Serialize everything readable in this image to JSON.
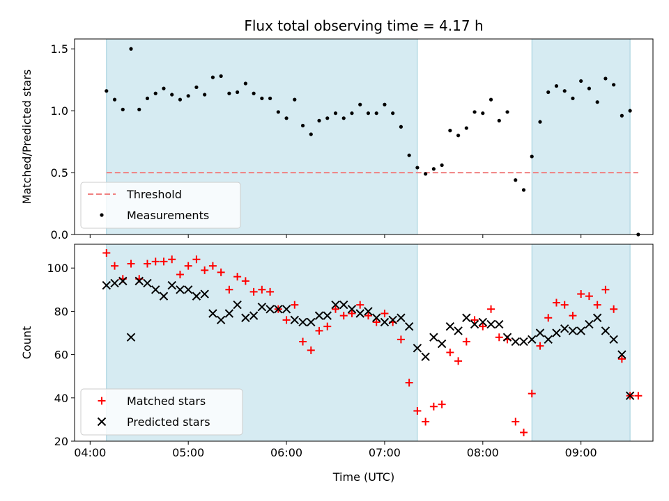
{
  "chart_data": [
    {
      "type": "scatter",
      "title": "Flux total observing time = 4.17 h",
      "xlabel": "",
      "ylabel": "Matched/Predicted stars",
      "ylim": [
        0,
        1.58
      ],
      "x_ticks": [
        "04:00",
        "05:00",
        "06:00",
        "07:00",
        "08:00",
        "09:00"
      ],
      "y_ticks": [
        "0.0",
        "0.5",
        "1.0",
        "1.5"
      ],
      "shaded_intervals": [
        [
          "04:10",
          "07:20"
        ],
        [
          "08:30",
          "09:30"
        ]
      ],
      "shade_color": "#add8e6",
      "threshold": {
        "name": "Threshold",
        "value": 0.5,
        "x_range": [
          "04:10",
          "09:35"
        ],
        "color": "#f08080"
      },
      "legend_position": "lower-left",
      "series": [
        {
          "name": "Measurements",
          "marker": "dot",
          "color": "#000000",
          "x": [
            "04:10",
            "04:15",
            "04:20",
            "04:25",
            "04:30",
            "04:35",
            "04:40",
            "04:45",
            "04:50",
            "04:55",
            "05:00",
            "05:05",
            "05:10",
            "05:15",
            "05:20",
            "05:25",
            "05:30",
            "05:35",
            "05:40",
            "05:45",
            "05:50",
            "05:55",
            "06:00",
            "06:05",
            "06:10",
            "06:15",
            "06:20",
            "06:25",
            "06:30",
            "06:35",
            "06:40",
            "06:45",
            "06:50",
            "06:55",
            "07:00",
            "07:05",
            "07:10",
            "07:15",
            "07:20",
            "07:25",
            "07:30",
            "07:35",
            "07:40",
            "07:45",
            "07:50",
            "07:55",
            "08:00",
            "08:05",
            "08:10",
            "08:15",
            "08:20",
            "08:25",
            "08:30",
            "08:35",
            "08:40",
            "08:45",
            "08:50",
            "08:55",
            "09:00",
            "09:05",
            "09:10",
            "09:15",
            "09:20",
            "09:25",
            "09:30",
            "09:35"
          ],
          "y": [
            1.16,
            1.09,
            1.01,
            1.5,
            1.01,
            1.1,
            1.14,
            1.18,
            1.13,
            1.09,
            1.12,
            1.19,
            1.13,
            1.27,
            1.28,
            1.14,
            1.15,
            1.22,
            1.14,
            1.1,
            1.1,
            0.99,
            0.94,
            1.09,
            0.88,
            0.81,
            0.92,
            0.94,
            0.98,
            0.94,
            0.98,
            1.05,
            0.98,
            0.98,
            1.05,
            0.98,
            0.87,
            0.64,
            0.54,
            0.49,
            0.53,
            0.56,
            0.84,
            0.8,
            0.86,
            0.99,
            0.98,
            1.09,
            0.92,
            0.99,
            0.44,
            0.36,
            0.63,
            0.91,
            1.15,
            1.2,
            1.16,
            1.1,
            1.24,
            1.18,
            1.07,
            1.26,
            1.21,
            0.96,
            1.0,
            0.0
          ]
        }
      ]
    },
    {
      "type": "scatter",
      "title": "",
      "xlabel": "Time (UTC)",
      "ylabel": "Count",
      "ylim": [
        20,
        111
      ],
      "x_ticks": [
        "04:00",
        "05:00",
        "06:00",
        "07:00",
        "08:00",
        "09:00"
      ],
      "y_ticks": [
        "20",
        "40",
        "60",
        "80",
        "100"
      ],
      "shaded_intervals": [
        [
          "04:10",
          "07:20"
        ],
        [
          "08:30",
          "09:30"
        ]
      ],
      "shade_color": "#add8e6",
      "legend_position": "lower-left",
      "series": [
        {
          "name": "Matched stars",
          "marker": "plus",
          "color": "#ff0000",
          "x": [
            "04:10",
            "04:15",
            "04:20",
            "04:25",
            "04:30",
            "04:35",
            "04:40",
            "04:45",
            "04:50",
            "04:55",
            "05:00",
            "05:05",
            "05:10",
            "05:15",
            "05:20",
            "05:25",
            "05:30",
            "05:35",
            "05:40",
            "05:45",
            "05:50",
            "05:55",
            "06:00",
            "06:05",
            "06:10",
            "06:15",
            "06:20",
            "06:25",
            "06:30",
            "06:35",
            "06:40",
            "06:45",
            "06:50",
            "06:55",
            "07:00",
            "07:05",
            "07:10",
            "07:15",
            "07:20",
            "07:25",
            "07:30",
            "07:35",
            "07:40",
            "07:45",
            "07:50",
            "07:55",
            "08:00",
            "08:05",
            "08:10",
            "08:15",
            "08:20",
            "08:25",
            "08:30",
            "08:35",
            "08:40",
            "08:45",
            "08:50",
            "08:55",
            "09:00",
            "09:05",
            "09:10",
            "09:15",
            "09:20",
            "09:25",
            "09:30",
            "09:35"
          ],
          "y": [
            107,
            101,
            95,
            102,
            95,
            102,
            103,
            103,
            104,
            97,
            101,
            104,
            99,
            101,
            98,
            90,
            96,
            94,
            89,
            90,
            89,
            81,
            76,
            83,
            66,
            62,
            71,
            73,
            81,
            78,
            79,
            83,
            78,
            75,
            79,
            75,
            67,
            47,
            34,
            29,
            36,
            37,
            61,
            57,
            66,
            76,
            73,
            81,
            68,
            67,
            29,
            24,
            42,
            64,
            77,
            84,
            83,
            78,
            88,
            87,
            83,
            90,
            81,
            58,
            41,
            41
          ]
        },
        {
          "name": "Predicted stars",
          "marker": "x",
          "color": "#000000",
          "x": [
            "04:10",
            "04:15",
            "04:20",
            "04:25",
            "04:30",
            "04:35",
            "04:40",
            "04:45",
            "04:50",
            "04:55",
            "05:00",
            "05:05",
            "05:10",
            "05:15",
            "05:20",
            "05:25",
            "05:30",
            "05:35",
            "05:40",
            "05:45",
            "05:50",
            "05:55",
            "06:00",
            "06:05",
            "06:10",
            "06:15",
            "06:20",
            "06:25",
            "06:30",
            "06:35",
            "06:40",
            "06:45",
            "06:50",
            "06:55",
            "07:00",
            "07:05",
            "07:10",
            "07:15",
            "07:20",
            "07:25",
            "07:30",
            "07:35",
            "07:40",
            "07:45",
            "07:50",
            "07:55",
            "08:00",
            "08:05",
            "08:10",
            "08:15",
            "08:20",
            "08:25",
            "08:30",
            "08:35",
            "08:40",
            "08:45",
            "08:50",
            "08:55",
            "09:00",
            "09:05",
            "09:10",
            "09:15",
            "09:20",
            "09:25",
            "09:30"
          ],
          "y": [
            92,
            93,
            94,
            68,
            94,
            93,
            90,
            87,
            92,
            90,
            90,
            87,
            88,
            79,
            76,
            79,
            83,
            77,
            78,
            82,
            81,
            81,
            81,
            76,
            75,
            75,
            78,
            78,
            83,
            83,
            81,
            79,
            80,
            77,
            75,
            76,
            77,
            73,
            63,
            59,
            68,
            65,
            73,
            71,
            77,
            74,
            75,
            74,
            74,
            68,
            66,
            66,
            67,
            70,
            67,
            70,
            72,
            71,
            71,
            74,
            77,
            71,
            67,
            60,
            41
          ]
        }
      ]
    }
  ]
}
